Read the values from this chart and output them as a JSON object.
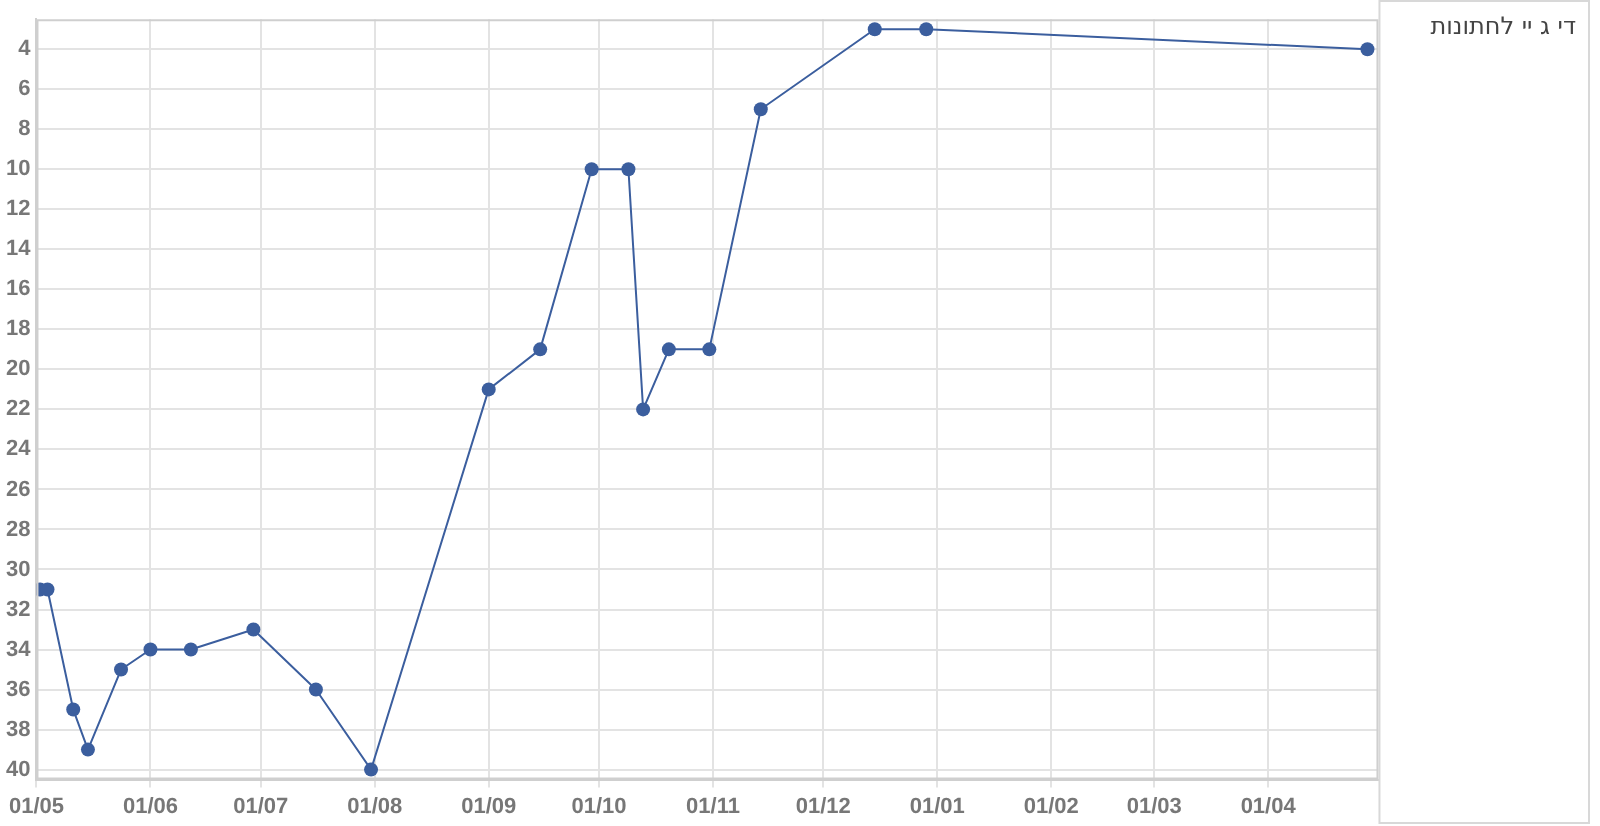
{
  "chart_data": {
    "type": "line",
    "x": [
      "2012-05-02",
      "2012-05-04",
      "2012-05-11",
      "2012-05-15",
      "2012-05-24",
      "2012-06-01",
      "2012-06-12",
      "2012-06-29",
      "2012-07-16",
      "2012-07-31",
      "2012-09-01",
      "2012-09-15",
      "2012-09-29",
      "2012-10-09",
      "2012-10-13",
      "2012-10-20",
      "2012-10-31",
      "2012-11-14",
      "2012-12-15",
      "2012-12-29",
      "2013-04-28"
    ],
    "series": [
      {
        "name": "די ג יי לחתונות",
        "color": "#3b5e9e",
        "values": [
          31,
          31,
          37,
          39,
          35,
          34,
          34,
          33,
          36,
          40,
          21,
          19,
          10,
          10,
          22,
          19,
          19,
          7,
          3,
          3,
          4
        ]
      }
    ],
    "xlim": [
      "2012-05-01",
      "2013-05-01"
    ],
    "xticks": [
      {
        "value": "2012-05-01",
        "label": "01/05"
      },
      {
        "value": "2012-06-01",
        "label": "01/06"
      },
      {
        "value": "2012-07-01",
        "label": "01/07"
      },
      {
        "value": "2012-08-01",
        "label": "01/08"
      },
      {
        "value": "2012-09-01",
        "label": "01/09"
      },
      {
        "value": "2012-10-01",
        "label": "01/10"
      },
      {
        "value": "2012-11-01",
        "label": "01/11"
      },
      {
        "value": "2012-12-01",
        "label": "01/12"
      },
      {
        "value": "2013-01-01",
        "label": "01/01"
      },
      {
        "value": "2013-02-01",
        "label": "01/02"
      },
      {
        "value": "2013-03-01",
        "label": "01/03"
      },
      {
        "value": "2013-04-01",
        "label": "01/04"
      }
    ],
    "ylim": [
      40.5,
      2.5
    ],
    "yticks": [
      4,
      6,
      8,
      10,
      12,
      14,
      16,
      18,
      20,
      22,
      24,
      26,
      28,
      30,
      32,
      34,
      36,
      38,
      40
    ],
    "grid": true,
    "legend": "top right",
    "marker": "circle",
    "line_style": "solid"
  }
}
